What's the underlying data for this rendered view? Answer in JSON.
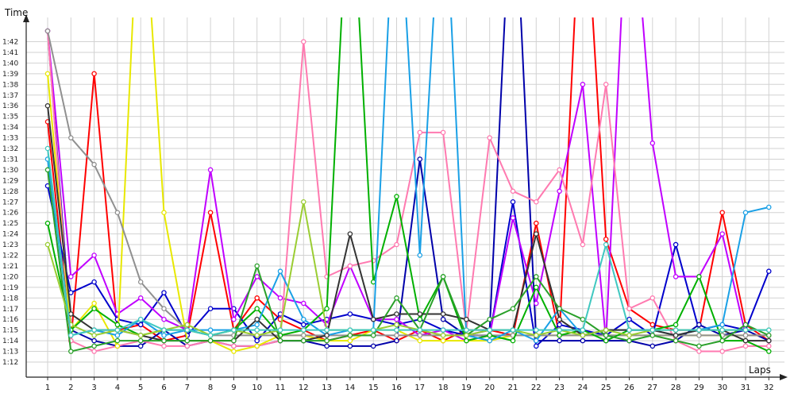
{
  "chart_data": {
    "type": "line",
    "ylabel": "Time",
    "xlabel": "Laps",
    "x": [
      1,
      2,
      3,
      4,
      5,
      6,
      7,
      8,
      9,
      10,
      11,
      12,
      13,
      14,
      15,
      16,
      17,
      18,
      19,
      20,
      21,
      22,
      23,
      24,
      25,
      26,
      27,
      28,
      29,
      30,
      31,
      32
    ],
    "y_tick_labels": [
      "1:12",
      "1:13",
      "1:14",
      "1:15",
      "1:16",
      "1:17",
      "1:18",
      "1:19",
      "1:20",
      "1:21",
      "1:22",
      "1:23",
      "1:24",
      "1:25",
      "1:26",
      "1:27",
      "1:28",
      "1:29",
      "1:30",
      "1:31",
      "1:32",
      "1:33",
      "1:34",
      "1:35",
      "1:36",
      "1:37",
      "1:38",
      "1:39",
      "1:40",
      "1:41",
      "1:42"
    ],
    "ylim_seconds": [
      71,
      103
    ],
    "y_unit": "seconds",
    "grid": true,
    "legend": "none",
    "series": [
      {
        "color": "#ff0000",
        "values": [
          94.5,
          74,
          99,
          75,
          75.5,
          74,
          74.5,
          86,
          75,
          78,
          76,
          75,
          74,
          74.5,
          75,
          74,
          75,
          74,
          75,
          75,
          74.5,
          85,
          74.5,
          120,
          83.5,
          77,
          75.5,
          75,
          75,
          86,
          75.5,
          74
        ]
      },
      {
        "color": "#0000cc",
        "values": [
          88.5,
          78.5,
          79.5,
          76,
          75.5,
          78.5,
          74.5,
          77,
          77,
          74,
          76.5,
          75.5,
          76,
          76.5,
          76,
          75.5,
          76,
          75,
          74.5,
          74.5,
          87,
          73.5,
          75.5,
          75,
          74.5,
          76,
          74.5,
          83,
          75,
          75.5,
          75,
          80.5
        ]
      },
      {
        "color": "#0000aa",
        "values": [
          103,
          75,
          74,
          73.5,
          73.5,
          75,
          73.5,
          74,
          73.5,
          73.5,
          74,
          74,
          73.5,
          73.5,
          73.5,
          74,
          91,
          76,
          74.5,
          75,
          120,
          74,
          74,
          74,
          74,
          74,
          73.5,
          74,
          75.5,
          74.5,
          75,
          74
        ]
      },
      {
        "color": "#c000ff",
        "values": [
          103,
          80,
          82,
          76.5,
          78,
          76,
          75,
          90,
          76,
          80,
          78,
          77.5,
          75.5,
          81,
          76,
          76,
          74.5,
          75,
          74,
          74.5,
          85.5,
          77.5,
          88,
          98,
          74,
          120,
          92.5,
          80,
          80,
          84,
          74.5,
          74.5
        ]
      },
      {
        "color": "#ff7ab0",
        "values": [
          103,
          74,
          73,
          73.5,
          74,
          73.5,
          73.5,
          74,
          73.5,
          73.5,
          74,
          102,
          80,
          81,
          81.5,
          83,
          93.5,
          93.5,
          75,
          93,
          88,
          87,
          90,
          83,
          98,
          77,
          78,
          74,
          73,
          73,
          73.5,
          73.5
        ]
      },
      {
        "color": "#e8e800",
        "values": [
          99,
          75,
          77.5,
          73.5,
          120,
          86,
          74,
          74,
          73,
          73.5,
          74.5,
          74.5,
          74,
          74,
          75,
          75,
          74,
          74,
          74,
          74,
          74.5,
          74.5,
          74.5,
          74.5,
          74.5,
          74.5,
          74.5,
          74.5,
          74.5,
          74.5,
          74.5,
          74.5
        ]
      },
      {
        "color": "#909090",
        "values": [
          103,
          93,
          90.5,
          86,
          79.5,
          77,
          75,
          74.5,
          74.5,
          74.5,
          74.5,
          74.5,
          74.5,
          74.5,
          74.5,
          74.5,
          74.5,
          74.5,
          74.5,
          74.5,
          74.5,
          74.5,
          74.5,
          74.5,
          74.5,
          74.5,
          74.5,
          74.5,
          74.5,
          74.5,
          74.5,
          74.5
        ]
      },
      {
        "color": "#00b000",
        "values": [
          85,
          75,
          77,
          75.5,
          74.5,
          75,
          75,
          74.5,
          75,
          77,
          74.5,
          75,
          77,
          120,
          79.5,
          87.5,
          76,
          80,
          74,
          74.5,
          74,
          79,
          74.5,
          75,
          74,
          75,
          75,
          75.5,
          80,
          74,
          74,
          73
        ]
      },
      {
        "color": "#1aa0e6",
        "values": [
          91,
          74.5,
          75,
          74.5,
          76,
          74.5,
          75,
          75,
          75,
          75.5,
          80.5,
          76,
          74.5,
          75,
          75,
          120,
          82,
          120,
          74.5,
          74,
          75,
          74,
          77,
          74.5,
          75,
          75,
          75,
          74.5,
          75,
          75.5,
          86,
          86.5
        ]
      },
      {
        "color": "#333333",
        "values": [
          96,
          76.5,
          75,
          75,
          74.5,
          74,
          74,
          74,
          74,
          76,
          74,
          74,
          74.5,
          84,
          76,
          76.5,
          76.5,
          76.5,
          76,
          75,
          75,
          84,
          76,
          74.5,
          75,
          75,
          75,
          74.5,
          75,
          75,
          74,
          74
        ]
      },
      {
        "color": "#2aa02a",
        "values": [
          90,
          73,
          73.5,
          74,
          74,
          74,
          74,
          74,
          74,
          81,
          74,
          74,
          74,
          74.5,
          74.5,
          78,
          75,
          80,
          74.5,
          76,
          77,
          80,
          77,
          76,
          74.5,
          74,
          74.5,
          74,
          73.5,
          74,
          75.5,
          74.5
        ]
      },
      {
        "color": "#9acd32",
        "values": [
          83,
          75.5,
          74.5,
          75,
          74.5,
          75,
          75.5,
          74.5,
          75,
          74.5,
          75,
          87,
          75,
          75,
          75,
          75.5,
          75,
          74.5,
          74.5,
          75,
          75,
          74.5,
          75,
          74.5,
          75,
          74.5,
          75,
          75,
          75,
          75,
          75,
          75
        ]
      },
      {
        "color": "#40c8c0",
        "values": [
          92,
          74.5,
          75,
          75,
          76,
          75,
          75,
          74.5,
          75,
          75,
          75,
          75,
          75,
          75,
          75,
          75,
          75,
          75,
          75,
          75,
          75,
          75,
          75,
          75,
          83,
          75,
          75,
          75,
          75,
          75,
          75,
          75
        ]
      }
    ]
  }
}
